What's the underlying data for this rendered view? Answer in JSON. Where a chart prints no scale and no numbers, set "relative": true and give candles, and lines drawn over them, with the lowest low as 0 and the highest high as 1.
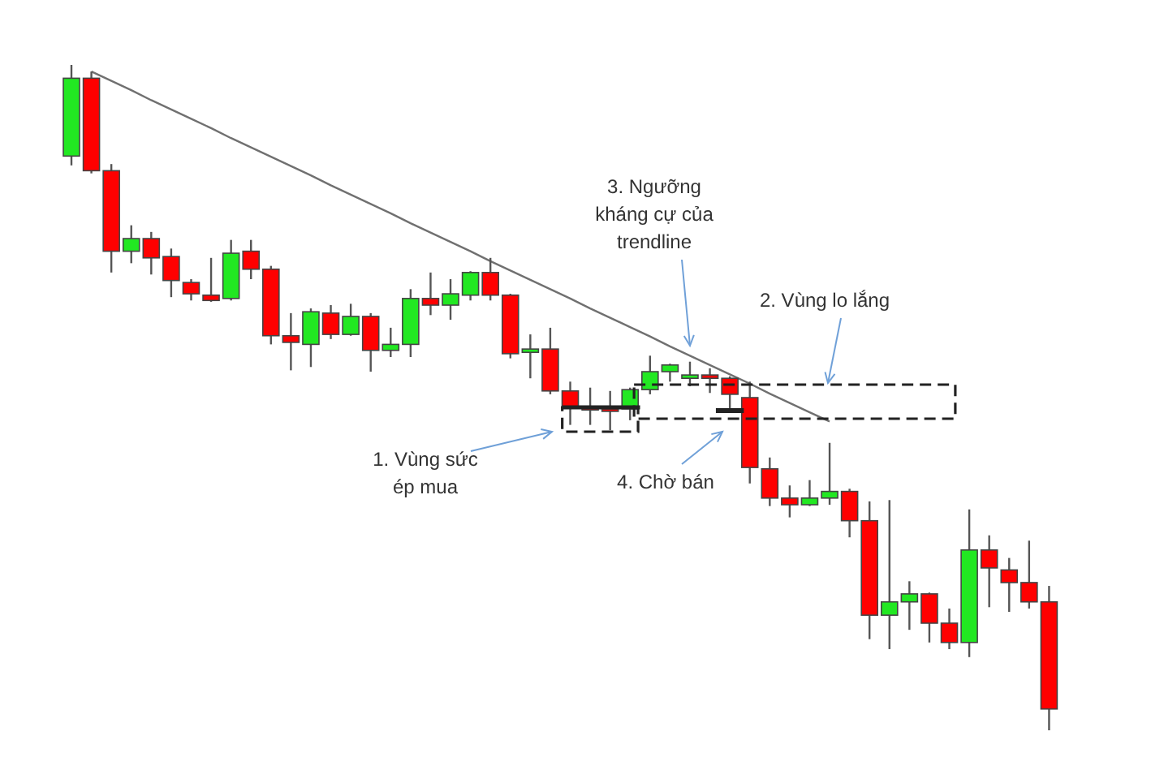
{
  "chart_data": {
    "type": "candlestick",
    "relative": true,
    "categories": [
      null,
      null,
      null,
      null,
      null,
      null,
      null,
      null,
      null,
      null,
      null,
      null,
      null,
      null,
      null,
      null,
      null,
      null,
      null,
      null,
      null,
      null,
      null,
      null,
      null,
      null,
      null,
      null,
      null,
      null,
      null,
      null,
      null,
      null,
      null,
      null,
      null,
      null,
      null,
      null,
      null,
      null,
      null,
      null,
      null,
      null,
      null,
      null,
      null,
      null
    ],
    "ohlc": [
      [
        0.863,
        1,
        0.849,
        0.98
      ],
      [
        0.98,
        0.99,
        0.837,
        0.841
      ],
      [
        0.841,
        0.851,
        0.688,
        0.72
      ],
      [
        0.72,
        0.759,
        0.702,
        0.739
      ],
      [
        0.739,
        0.749,
        0.685,
        0.71
      ],
      [
        0.712,
        0.724,
        0.651,
        0.676
      ],
      [
        0.673,
        0.678,
        0.646,
        0.656
      ],
      [
        0.654,
        0.71,
        0.644,
        0.646
      ],
      [
        0.649,
        0.737,
        0.646,
        0.717
      ],
      [
        0.72,
        0.737,
        0.678,
        0.693
      ],
      [
        0.693,
        0.698,
        0.58,
        0.593
      ],
      [
        0.593,
        0.627,
        0.541,
        0.583
      ],
      [
        0.58,
        0.634,
        0.546,
        0.629
      ],
      [
        0.627,
        0.639,
        0.588,
        0.595
      ],
      [
        0.595,
        0.641,
        0.593,
        0.622
      ],
      [
        0.622,
        0.627,
        0.539,
        0.571
      ],
      [
        0.571,
        0.605,
        0.561,
        0.58
      ],
      [
        0.58,
        0.663,
        0.561,
        0.649
      ],
      [
        0.649,
        0.688,
        0.624,
        0.639
      ],
      [
        0.639,
        0.678,
        0.617,
        0.656
      ],
      [
        0.654,
        0.69,
        0.646,
        0.688
      ],
      [
        0.688,
        0.71,
        0.646,
        0.654
      ],
      [
        0.654,
        0.656,
        0.559,
        0.566
      ],
      [
        0.568,
        0.595,
        0.529,
        0.573
      ],
      [
        0.573,
        0.605,
        0.505,
        0.51
      ],
      [
        0.51,
        0.524,
        0.459,
        0.485
      ],
      [
        0.485,
        0.515,
        0.459,
        0.483
      ],
      [
        0.483,
        0.51,
        0.451,
        0.48
      ],
      [
        0.483,
        0.515,
        0.466,
        0.512
      ],
      [
        0.512,
        0.563,
        0.505,
        0.539
      ],
      [
        0.539,
        0.551,
        0.524,
        0.549
      ],
      [
        0.529,
        0.554,
        0.517,
        0.534
      ],
      [
        0.534,
        0.544,
        0.507,
        0.529
      ],
      [
        0.529,
        0.532,
        0.483,
        0.505
      ],
      [
        0.5,
        0.524,
        0.371,
        0.395
      ],
      [
        0.393,
        0.41,
        0.337,
        0.349
      ],
      [
        0.349,
        0.368,
        0.32,
        0.339
      ],
      [
        0.339,
        0.376,
        0.337,
        0.349
      ],
      [
        0.349,
        0.432,
        0.339,
        0.359
      ],
      [
        0.359,
        0.363,
        0.29,
        0.315
      ],
      [
        0.315,
        0.344,
        0.137,
        0.173
      ],
      [
        0.173,
        0.346,
        0.122,
        0.193
      ],
      [
        0.193,
        0.224,
        0.151,
        0.205
      ],
      [
        0.205,
        0.207,
        0.132,
        0.161
      ],
      [
        0.161,
        0.183,
        0.122,
        0.132
      ],
      [
        0.132,
        0.332,
        0.11,
        0.271
      ],
      [
        0.271,
        0.293,
        0.185,
        0.244
      ],
      [
        0.241,
        0.259,
        0.178,
        0.222
      ],
      [
        0.222,
        0.285,
        0.183,
        0.193
      ],
      [
        0.193,
        0.217,
        0,
        0.032
      ]
    ],
    "colors": [
      "#22e822",
      "#ff0000",
      "#ff0000",
      "#22e822",
      "#ff0000",
      "#ff0000",
      "#ff0000",
      "#ff0000",
      "#22e822",
      "#ff0000",
      "#ff0000",
      "#ff0000",
      "#22e822",
      "#ff0000",
      "#22e822",
      "#ff0000",
      "#22e822",
      "#22e822",
      "#ff0000",
      "#22e822",
      "#22e822",
      "#ff0000",
      "#ff0000",
      "#22e822",
      "#ff0000",
      "#ff0000",
      "#ff0000",
      "#ff0000",
      "#22e822",
      "#22e822",
      "#22e822",
      "#22e822",
      "#ff0000",
      "#ff0000",
      "#ff0000",
      "#ff0000",
      "#ff0000",
      "#22e822",
      "#22e822",
      "#ff0000",
      "#ff0000",
      "#22e822",
      "#22e822",
      "#ff0000",
      "#ff0000",
      "#22e822",
      "#ff0000",
      "#ff0000",
      "#ff0000",
      "#ff0000"
    ],
    "series": [
      {
        "type": "line",
        "values": [
          null,
          0.99,
          0.976,
          0.962,
          0.947,
          0.933,
          0.919,
          0.905,
          0.89,
          0.876,
          0.862,
          0.848,
          0.834,
          0.819,
          0.805,
          0.791,
          0.777,
          0.762,
          0.748,
          0.734,
          0.72,
          0.705,
          0.691,
          0.677,
          0.663,
          0.649,
          0.634,
          0.62,
          0.606,
          0.592,
          0.577,
          0.563,
          0.549,
          0.535,
          0.521,
          0.506,
          0.492,
          0.478,
          0.464,
          null,
          null,
          null,
          null,
          null,
          null,
          null,
          null,
          null,
          null,
          null
        ],
        "color": "#707070"
      }
    ],
    "annotations": [
      "1. Vùng sức\nép mua",
      "2. Vùng lo lắng",
      "3. Ngưỡng\nkháng cự của\ntrendline",
      "4. Chờ bán"
    ]
  }
}
